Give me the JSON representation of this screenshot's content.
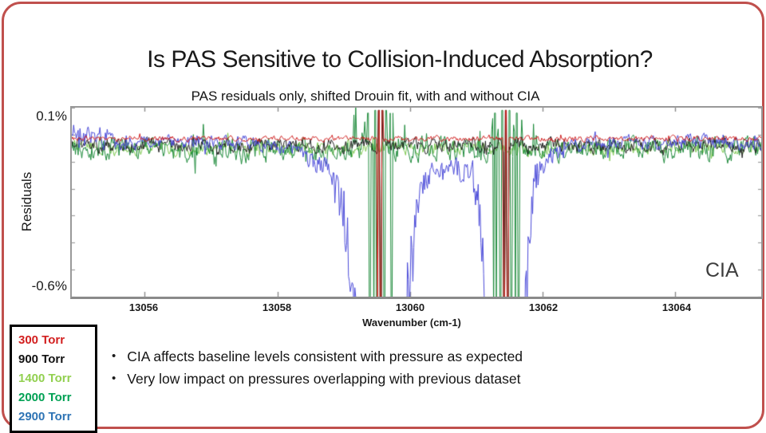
{
  "slide": {
    "title": "Is PAS Sensitive to Collision-Induced Absorption?",
    "border_color": "#c0504d"
  },
  "bullets": [
    "CIA affects baseline levels consistent with pressure as expected",
    "Very low impact on pressures overlapping with previous dataset"
  ],
  "legend": {
    "items": [
      {
        "label": "300 Torr",
        "color": "#d21f1f"
      },
      {
        "label": "900 Torr",
        "color": "#111111"
      },
      {
        "label": "1400 Torr",
        "color": "#92d050"
      },
      {
        "label": "2000 Torr",
        "color": "#00a154"
      },
      {
        "label": "2900 Torr",
        "color": "#2e74b5"
      }
    ]
  },
  "chart_data": {
    "type": "line",
    "title": "PAS residuals only, shifted Drouin fit, with and without CIA",
    "ylabel": "Residuals",
    "xlabel": "Wavenumber (cm-1)",
    "annotation": "CIA",
    "y_top_tick": "0.1%",
    "y_bottom_tick": "-0.6%",
    "x_tick_labels": [
      "13056",
      "13058",
      "13060",
      "13062",
      "13064"
    ],
    "x_ticks": [
      13056,
      13058,
      13060,
      13062,
      13064
    ],
    "xlim": [
      13054.9,
      13065.3
    ],
    "ylim_pct": [
      -0.6,
      0.1
    ],
    "grid": false,
    "legend_position": "outside-bottom-left",
    "absorption_line_centers": [
      13059.55,
      13061.45
    ],
    "series": [
      {
        "name": "1400 Torr",
        "color": "#7ec850",
        "baseline_pct": -0.05,
        "noise_pct": 0.02,
        "seed": 11
      },
      {
        "name": "2000 Torr",
        "color": "#1f8b3c",
        "baseline_pct": -0.055,
        "noise_pct": 0.034,
        "seed": 23,
        "column_halfwidth": 0.1,
        "satellite_offsets": [
          -0.17,
          0.17
        ],
        "satellite_halfwidth": 0.03,
        "upspike_halfwidth": 0.5
      },
      {
        "name": "900 Torr",
        "color": "#222222",
        "baseline_pct": -0.04,
        "noise_pct": 0.021,
        "seed": 37,
        "column_halfwidth": 0.035
      },
      {
        "name": "2900 Torr",
        "color": "#4a4ad8",
        "baseline_pct": -0.03,
        "noise_pct": 0.022,
        "seed": 51,
        "start_bump_pct": 0.05,
        "dips": [
          {
            "center": 13059.55,
            "width": 0.3,
            "depth": 3.0
          },
          {
            "center": 13059.55,
            "width": 0.85,
            "depth": 0.26
          },
          {
            "center": 13061.45,
            "width": 0.22,
            "depth": 3.0
          },
          {
            "center": 13061.45,
            "width": 0.6,
            "depth": 0.22
          }
        ]
      },
      {
        "name": "300 Torr",
        "color": "#cf1f1f",
        "baseline_pct": -0.015,
        "noise_pct": 0.008,
        "seed": 67,
        "column_halfwidth": 0.045
      }
    ]
  }
}
